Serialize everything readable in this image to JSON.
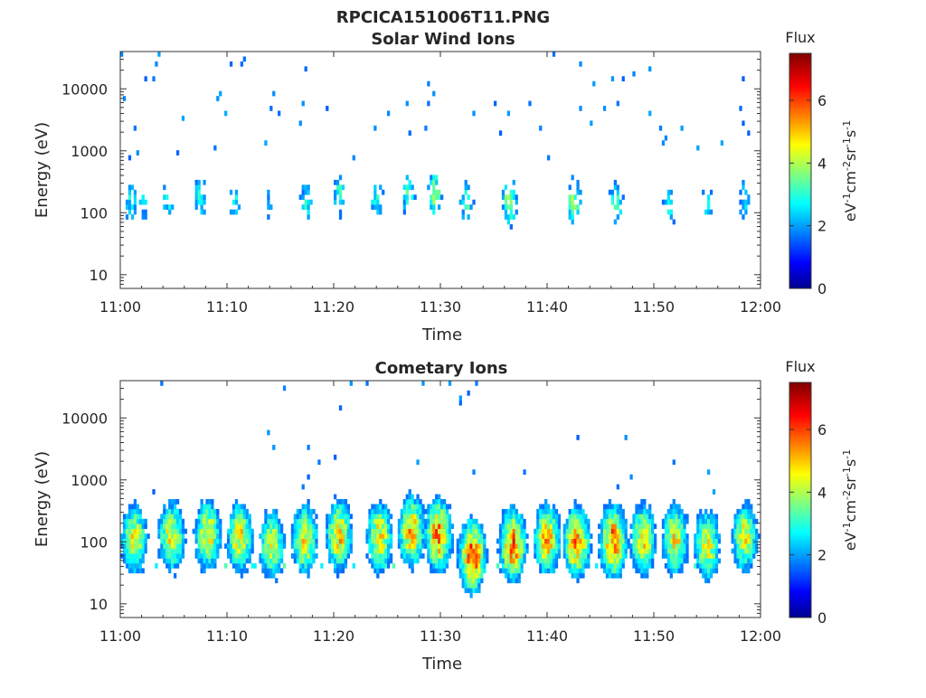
{
  "figure_title": "RPCICA151006T11.PNG",
  "chart_data": [
    {
      "type": "heatmap",
      "title": "Solar Wind Ions",
      "xlabel": "Time",
      "ylabel": "Energy (eV)",
      "x_ticks": [
        "11:00",
        "11:10",
        "11:20",
        "11:30",
        "11:40",
        "11:50",
        "12:00"
      ],
      "x_range_minutes": [
        0,
        60
      ],
      "y_scale": "log",
      "y_ticks": [
        "10",
        "100",
        "1000",
        "10000"
      ],
      "ylim": [
        6,
        40000
      ],
      "colorbar": {
        "label": "Flux",
        "unit": "eV⁻¹cm⁻²sr⁻¹s⁻¹",
        "ticks": [
          "0",
          "2",
          "4",
          "6"
        ],
        "range": [
          0,
          7.5
        ],
        "colormap": "jet"
      },
      "bursts": [
        {
          "t": 1.0,
          "e": 150,
          "peak": 2.8
        },
        {
          "t": 2.2,
          "e": 140,
          "peak": 2.6
        },
        {
          "t": 4.5,
          "e": 160,
          "peak": 2.8
        },
        {
          "t": 7.5,
          "e": 180,
          "peak": 3.0
        },
        {
          "t": 10.8,
          "e": 150,
          "peak": 2.8
        },
        {
          "t": 14.0,
          "e": 140,
          "peak": 2.6
        },
        {
          "t": 17.5,
          "e": 160,
          "peak": 3.0
        },
        {
          "t": 20.5,
          "e": 200,
          "peak": 3.2
        },
        {
          "t": 24.0,
          "e": 170,
          "peak": 3.0
        },
        {
          "t": 27.0,
          "e": 190,
          "peak": 3.2
        },
        {
          "t": 29.5,
          "e": 200,
          "peak": 4.0
        },
        {
          "t": 32.5,
          "e": 150,
          "peak": 3.6
        },
        {
          "t": 36.5,
          "e": 150,
          "peak": 4.2
        },
        {
          "t": 42.5,
          "e": 160,
          "peak": 3.8
        },
        {
          "t": 46.5,
          "e": 150,
          "peak": 3.4
        },
        {
          "t": 51.5,
          "e": 130,
          "peak": 2.8
        },
        {
          "t": 55.0,
          "e": 140,
          "peak": 2.6
        },
        {
          "t": 58.5,
          "e": 160,
          "peak": 2.8
        }
      ]
    },
    {
      "type": "heatmap",
      "title": "Cometary Ions",
      "xlabel": "Time",
      "ylabel": "Energy (eV)",
      "x_ticks": [
        "11:00",
        "11:10",
        "11:20",
        "11:30",
        "11:40",
        "11:50",
        "12:00"
      ],
      "x_range_minutes": [
        0,
        60
      ],
      "y_scale": "log",
      "y_ticks": [
        "10",
        "100",
        "1000",
        "10000"
      ],
      "ylim": [
        6,
        40000
      ],
      "colorbar": {
        "label": "Flux",
        "unit": "eV⁻¹cm⁻²sr⁻¹s⁻¹",
        "ticks": [
          "0",
          "2",
          "4",
          "6"
        ],
        "range": [
          0,
          7.5
        ],
        "colormap": "jet"
      },
      "bursts": [
        {
          "t": 1.3,
          "e": 110,
          "peak": 4.6
        },
        {
          "t": 4.8,
          "e": 120,
          "peak": 4.8
        },
        {
          "t": 8.2,
          "e": 130,
          "peak": 4.8
        },
        {
          "t": 11.2,
          "e": 120,
          "peak": 4.8
        },
        {
          "t": 14.2,
          "e": 90,
          "peak": 4.4
        },
        {
          "t": 17.3,
          "e": 110,
          "peak": 4.8
        },
        {
          "t": 20.5,
          "e": 130,
          "peak": 5.0
        },
        {
          "t": 24.3,
          "e": 120,
          "peak": 4.8
        },
        {
          "t": 27.3,
          "e": 150,
          "peak": 5.2
        },
        {
          "t": 29.8,
          "e": 130,
          "peak": 5.6
        },
        {
          "t": 33.0,
          "e": 60,
          "peak": 6.0
        },
        {
          "t": 36.8,
          "e": 90,
          "peak": 5.8
        },
        {
          "t": 40.0,
          "e": 110,
          "peak": 5.2
        },
        {
          "t": 42.8,
          "e": 100,
          "peak": 5.6
        },
        {
          "t": 46.2,
          "e": 100,
          "peak": 5.8
        },
        {
          "t": 49.0,
          "e": 110,
          "peak": 4.8
        },
        {
          "t": 52.0,
          "e": 110,
          "peak": 4.8
        },
        {
          "t": 55.0,
          "e": 90,
          "peak": 4.6
        },
        {
          "t": 58.5,
          "e": 120,
          "peak": 4.6
        }
      ]
    }
  ]
}
